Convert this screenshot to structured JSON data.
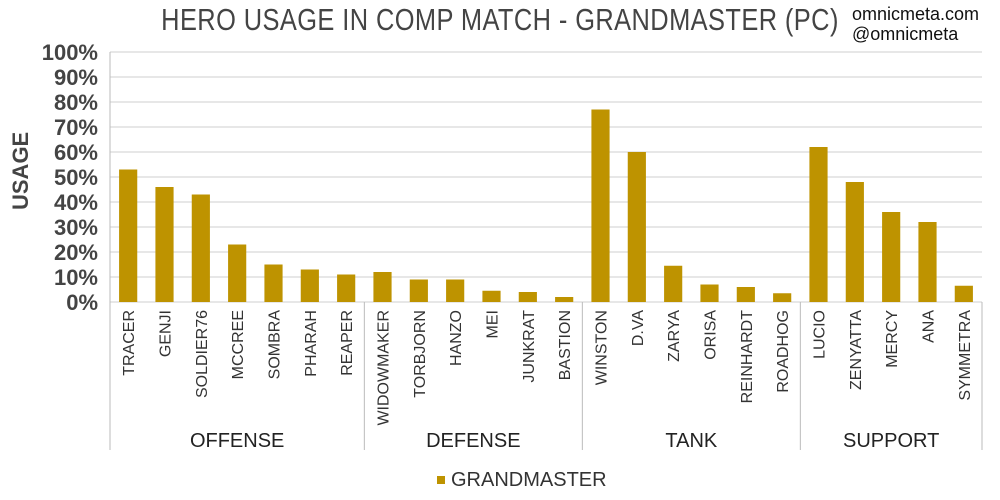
{
  "watermark": {
    "line1": "omnicmeta.com",
    "line2": "@omnicmeta"
  },
  "colors": {
    "bar": "#BE9300",
    "grid": "#cfcfcf",
    "axis": "#bbbbbb"
  },
  "chart_data": {
    "type": "bar",
    "title": "HERO USAGE IN COMP MATCH - GRANDMASTER (PC)",
    "ylabel": "USAGE",
    "xlabel": "",
    "ylim": [
      0,
      1
    ],
    "yticks": [
      "0%",
      "10%",
      "20%",
      "30%",
      "40%",
      "50%",
      "60%",
      "70%",
      "80%",
      "90%",
      "100%"
    ],
    "grid": true,
    "legend_position": "bottom",
    "categories": [
      "TRACER",
      "GENJI",
      "SOLDIER76",
      "MCCREE",
      "SOMBRA",
      "PHARAH",
      "REAPER",
      "WIDOWMAKER",
      "TORBJORN",
      "HANZO",
      "MEI",
      "JUNKRAT",
      "BASTION",
      "WINSTON",
      "D.VA",
      "ZARYA",
      "ORISA",
      "REINHARDT",
      "ROADHOG",
      "LUCIO",
      "ZENYATTA",
      "MERCY",
      "ANA",
      "SYMMETRA"
    ],
    "groups": [
      {
        "name": "OFFENSE",
        "count": 7
      },
      {
        "name": "DEFENSE",
        "count": 6
      },
      {
        "name": "TANK",
        "count": 6
      },
      {
        "name": "SUPPORT",
        "count": 5
      }
    ],
    "series": [
      {
        "name": "GRANDMASTER",
        "values": [
          0.53,
          0.46,
          0.43,
          0.23,
          0.15,
          0.13,
          0.11,
          0.12,
          0.09,
          0.09,
          0.045,
          0.04,
          0.02,
          0.77,
          0.6,
          0.145,
          0.07,
          0.06,
          0.035,
          0.62,
          0.48,
          0.36,
          0.32,
          0.065
        ]
      }
    ]
  }
}
